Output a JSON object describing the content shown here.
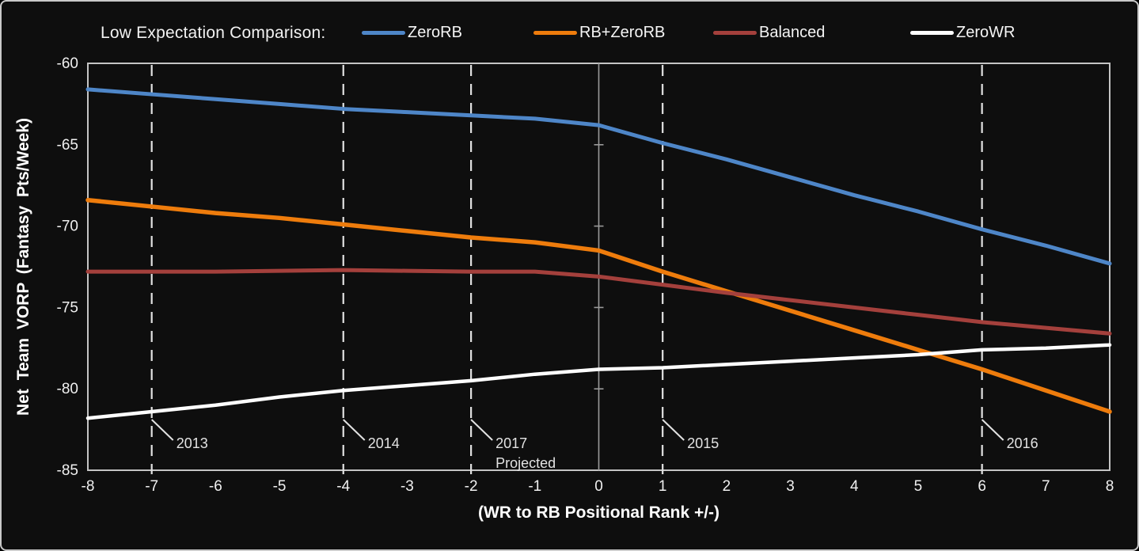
{
  "figure": {
    "background": "#0e0e0e",
    "border_color": "#c9c9c9",
    "plot_border_color": "#c4c4c4",
    "tick_label_color": "#f0f0f0",
    "annotation_color": "#e2e2e2",
    "zero_line_color": "#9a9a9a"
  },
  "legend": {
    "title": "Low Expectation Comparison:",
    "items": [
      {
        "label": "ZeroRB",
        "color": "#4e86c8"
      },
      {
        "label": "RB+ZeroRB",
        "color": "#ee7c0c"
      },
      {
        "label": "Balanced",
        "color": "#a4403c"
      },
      {
        "label": "ZeroWR",
        "color": "#ffffff"
      }
    ]
  },
  "chart_data": {
    "type": "line",
    "title": "Low Expectation Comparison:",
    "xlabel": "(WR to RB Positional Rank +/-)",
    "ylabel": "Net Team VORP (Fantasy Pts/Week)",
    "xlim": [
      -8,
      8
    ],
    "ylim": [
      -85,
      -60
    ],
    "xticks": [
      -8,
      -7,
      -6,
      -5,
      -4,
      -3,
      -2,
      -1,
      0,
      1,
      2,
      3,
      4,
      5,
      6,
      7,
      8
    ],
    "yticks": [
      -60,
      -65,
      -70,
      -75,
      -80,
      -85
    ],
    "grid": false,
    "legend_position": "top",
    "x": [
      -8,
      -7,
      -6,
      -5,
      -4,
      -3,
      -2,
      -1,
      0,
      1,
      2,
      3,
      4,
      5,
      6,
      7,
      8
    ],
    "series": [
      {
        "name": "ZeroRB",
        "color": "#4e86c8",
        "width": 5,
        "values": [
          -61.6,
          -61.9,
          -62.2,
          -62.5,
          -62.8,
          -63.0,
          -63.2,
          -63.4,
          -63.8,
          -64.9,
          -65.9,
          -67.0,
          -68.1,
          -69.1,
          -70.2,
          -71.2,
          -72.3
        ]
      },
      {
        "name": "RB+ZeroRB",
        "color": "#ee7c0c",
        "width": 5.5,
        "values": [
          -68.4,
          -68.8,
          -69.2,
          -69.5,
          -69.9,
          -70.3,
          -70.7,
          -71.0,
          -71.5,
          -72.8,
          -74.0,
          -75.2,
          -76.4,
          -77.6,
          -78.8,
          -80.1,
          -81.4
        ]
      },
      {
        "name": "Balanced",
        "color": "#a4403c",
        "width": 5,
        "values": [
          -72.8,
          -72.8,
          -72.8,
          -72.75,
          -72.7,
          -72.75,
          -72.8,
          -72.8,
          -73.1,
          -73.6,
          -74.1,
          -74.55,
          -75.0,
          -75.45,
          -75.9,
          -76.25,
          -76.6
        ]
      },
      {
        "name": "ZeroWR",
        "color": "#ffffff",
        "width": 4.5,
        "values": [
          -81.8,
          -81.4,
          -81.0,
          -80.5,
          -80.1,
          -79.8,
          -79.5,
          -79.1,
          -78.8,
          -78.7,
          -78.5,
          -78.3,
          -78.1,
          -77.9,
          -77.6,
          -77.5,
          -77.3
        ]
      }
    ],
    "zero_reference_line_x": 0,
    "annotations": [
      {
        "x": -7,
        "label": "2013",
        "label_lines": [
          "2013"
        ]
      },
      {
        "x": -4,
        "label": "2014",
        "label_lines": [
          "2014"
        ]
      },
      {
        "x": -2,
        "label": "2017 Projected",
        "label_lines": [
          "2017",
          "Projected"
        ]
      },
      {
        "x": 1,
        "label": "2015",
        "label_lines": [
          "2015"
        ]
      },
      {
        "x": 6,
        "label": "2016",
        "label_lines": [
          "2016"
        ]
      }
    ]
  }
}
